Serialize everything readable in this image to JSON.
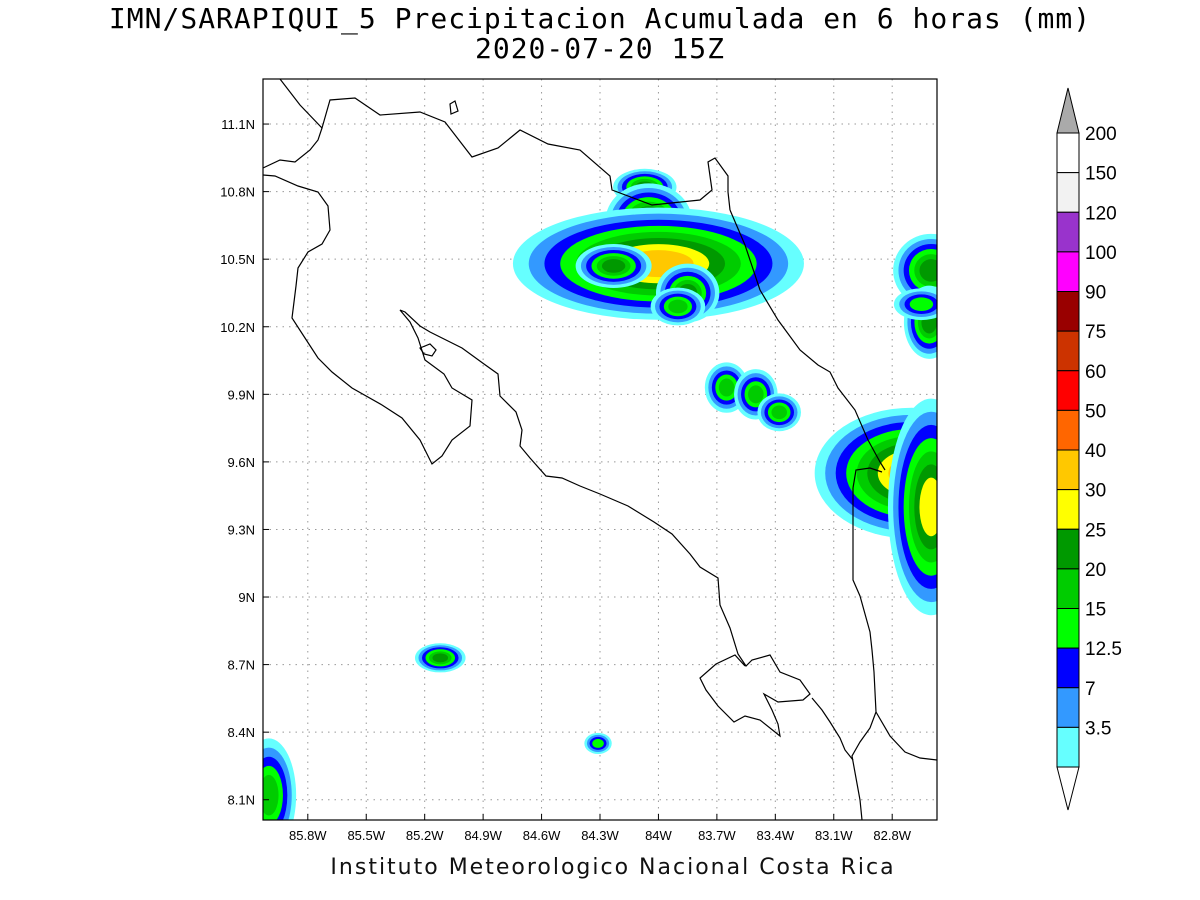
{
  "title": {
    "line1": "IMN/SARAPIQUI_5 Precipitacion Acumulada en 6 horas (mm)",
    "line2": "2020-07-20 15Z"
  },
  "footer": "Instituto Meteorologico Nacional Costa Rica",
  "map": {
    "lon_range": [
      -86.03,
      -82.57
    ],
    "lat_range": [
      8.01,
      11.3
    ],
    "x_ticks": [
      {
        "value": -85.8,
        "label": "85.8W"
      },
      {
        "value": -85.5,
        "label": "85.5W"
      },
      {
        "value": -85.2,
        "label": "85.2W"
      },
      {
        "value": -84.9,
        "label": "84.9W"
      },
      {
        "value": -84.6,
        "label": "84.6W"
      },
      {
        "value": -84.3,
        "label": "84.3W"
      },
      {
        "value": -84.0,
        "label": "84W"
      },
      {
        "value": -83.7,
        "label": "83.7W"
      },
      {
        "value": -83.4,
        "label": "83.4W"
      },
      {
        "value": -83.1,
        "label": "83.1W"
      },
      {
        "value": -82.8,
        "label": "82.8W"
      }
    ],
    "y_ticks": [
      {
        "value": 8.1,
        "label": "8.1N"
      },
      {
        "value": 8.4,
        "label": "8.4N"
      },
      {
        "value": 8.7,
        "label": "8.7N"
      },
      {
        "value": 9.0,
        "label": "9N"
      },
      {
        "value": 9.3,
        "label": "9.3N"
      },
      {
        "value": 9.6,
        "label": "9.6N"
      },
      {
        "value": 9.9,
        "label": "9.9N"
      },
      {
        "value": 10.2,
        "label": "10.2N"
      },
      {
        "value": 10.5,
        "label": "10.5N"
      },
      {
        "value": 10.8,
        "label": "10.8N"
      },
      {
        "value": 11.1,
        "label": "11.1N"
      }
    ],
    "grid": "dotted",
    "precip_cells": [
      {
        "lon": -84.07,
        "lat": 10.82,
        "rx": 0.05,
        "ry": 0.025,
        "max": 25
      },
      {
        "lon": -84.05,
        "lat": 10.67,
        "rx": 0.06,
        "ry": 0.045,
        "max": 30
      },
      {
        "lon": -84.0,
        "lat": 10.48,
        "rx": 0.18,
        "ry": 0.06,
        "max": 40
      },
      {
        "lon": -84.23,
        "lat": 10.47,
        "rx": 0.06,
        "ry": 0.03,
        "max": 25
      },
      {
        "lon": -83.85,
        "lat": 10.35,
        "rx": 0.05,
        "ry": 0.04,
        "max": 25
      },
      {
        "lon": -83.9,
        "lat": 10.29,
        "rx": 0.05,
        "ry": 0.03,
        "max": 20
      },
      {
        "lon": -83.65,
        "lat": 9.93,
        "rx": 0.04,
        "ry": 0.04,
        "max": 20
      },
      {
        "lon": -83.5,
        "lat": 9.9,
        "rx": 0.04,
        "ry": 0.04,
        "max": 20
      },
      {
        "lon": -83.38,
        "lat": 9.82,
        "rx": 0.04,
        "ry": 0.03,
        "max": 20
      },
      {
        "lon": -82.8,
        "lat": 9.6,
        "rx": 0.06,
        "ry": 0.045,
        "max": 60
      },
      {
        "lon": -82.7,
        "lat": 9.55,
        "rx": 0.12,
        "ry": 0.07,
        "max": 40
      },
      {
        "lon": -82.6,
        "lat": 9.4,
        "rx": 0.06,
        "ry": 0.13,
        "max": 30
      },
      {
        "lon": -82.6,
        "lat": 10.45,
        "rx": 0.06,
        "ry": 0.05,
        "max": 25
      },
      {
        "lon": -82.61,
        "lat": 10.22,
        "rx": 0.04,
        "ry": 0.05,
        "max": 25
      },
      {
        "lon": -82.65,
        "lat": 10.3,
        "rx": 0.06,
        "ry": 0.03,
        "max": 15
      },
      {
        "lon": -85.12,
        "lat": 8.73,
        "rx": 0.04,
        "ry": 0.02,
        "max": 25
      },
      {
        "lon": -86.0,
        "lat": 8.12,
        "rx": 0.05,
        "ry": 0.09,
        "max": 20
      },
      {
        "lon": -84.31,
        "lat": 8.35,
        "rx": 0.03,
        "ry": 0.02,
        "max": 15
      }
    ]
  },
  "colorbar": {
    "labels": [
      "200",
      "150",
      "120",
      "100",
      "90",
      "75",
      "60",
      "50",
      "40",
      "30",
      "25",
      "20",
      "15",
      "12.5",
      "7",
      "3.5"
    ],
    "colors": [
      "#ffffff",
      "#f2f2f2",
      "#9933cc",
      "#ff00ff",
      "#990000",
      "#cc3300",
      "#ff0000",
      "#ff6600",
      "#ffc800",
      "#ffff00",
      "#009900",
      "#00cc00",
      "#00ff00",
      "#0000ff",
      "#3399ff",
      "#66ffff"
    ],
    "top_arrow_color": "#aaaaaa",
    "bottom_arrow_color": "#ffffff"
  }
}
